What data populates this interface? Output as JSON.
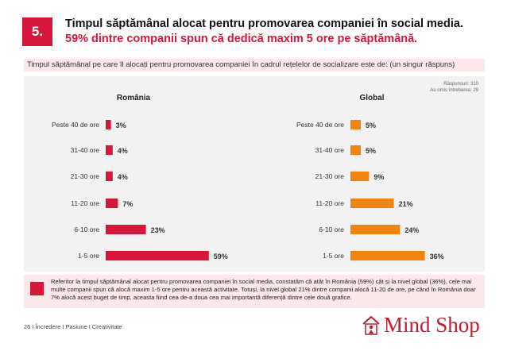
{
  "slide": {
    "number": "5.",
    "title_line1": "Timpul săptămânal alocat pentru promovarea companiei în social media.",
    "title_line2": "59% dintre companii spun că dedică maxim 5 ore pe săptămână."
  },
  "question": "Timpul săptămânal pe care îl alocați pentru promovarea companiei în cadrul rețelelor de socializare este de: (un singur răspuns)",
  "respondents": {
    "line1": "Răspunsuri: 310",
    "line2": "Au omis întrebarea: 29"
  },
  "colors": {
    "romania": "#d6163a",
    "global": "#f08413",
    "accent": "#d6163a"
  },
  "chart_data": [
    {
      "type": "bar",
      "orientation": "horizontal",
      "title": "România",
      "categories": [
        "Peste 40 de ore",
        "31-40 ore",
        "21-30 ore",
        "11-20 ore",
        "6-10 ore",
        "1-5 ore"
      ],
      "values": [
        3,
        4,
        4,
        7,
        23,
        59
      ],
      "labels": [
        "3%",
        "4%",
        "4%",
        "7%",
        "23%",
        "59%"
      ],
      "unit": "%",
      "xlim": [
        0,
        60
      ]
    },
    {
      "type": "bar",
      "orientation": "horizontal",
      "title": "Global",
      "categories": [
        "Peste 40 de ore",
        "31-40 ore",
        "21-30 ore",
        "11-20 ore",
        "6-10 ore",
        "1-5 ore"
      ],
      "values": [
        5,
        5,
        9,
        21,
        24,
        36
      ],
      "labels": [
        "5%",
        "5%",
        "9%",
        "21%",
        "24%",
        "36%"
      ],
      "unit": "%",
      "xlim": [
        0,
        40
      ]
    }
  ],
  "summary": "Referitor la timpul săptămânal alocat pentru promovarea companiei în social media, constatăm că atât în România (59%) cât și la nivel global (36%), cele mai multe companii spun că alocă maxim 1-5 ore pentru această activitate. Totuși, la nivel global 21% dintre companii alocă 11-20 de ore, pe când în România doar 7% alocă acest buget de timp, aceasta fiind cea de-a doua cea mai importantă diferență dintre cele două grafice.",
  "page_footer": "26 I Încredere I Pasiune I Creativitate",
  "logo": {
    "text": "Mind Shop"
  }
}
